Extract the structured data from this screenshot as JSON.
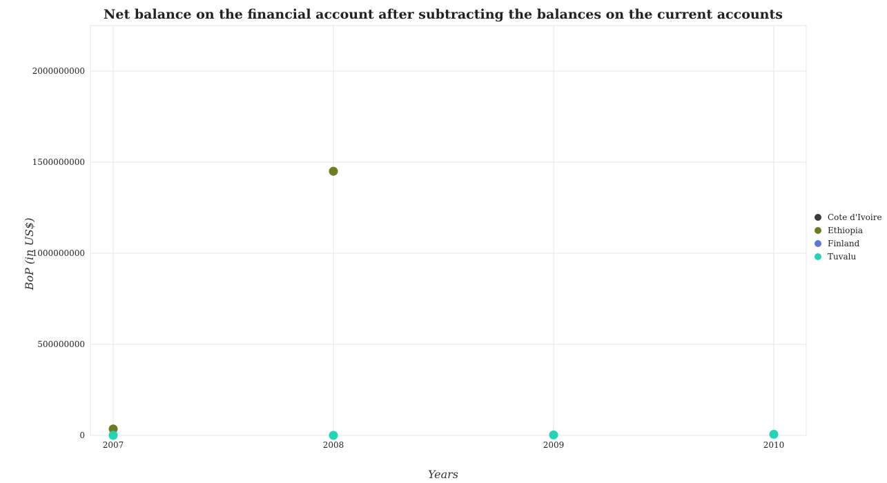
{
  "chart_data": {
    "type": "scatter",
    "title": "Net balance on the financial account after subtracting the balances on the current accounts",
    "xlabel": "Years",
    "ylabel": "BoP (in US$)",
    "categories": [
      "2007",
      "2008",
      "2009",
      "2010"
    ],
    "y_ticks": [
      0,
      500000000,
      1000000000,
      1500000000,
      2000000000
    ],
    "y_tick_labels": [
      "0",
      "500000000",
      "1000000000",
      "1500000000",
      "2000000000"
    ],
    "ylim": [
      0,
      2250000000
    ],
    "grid": true,
    "legend_position": "right",
    "series": [
      {
        "name": "Cote d'Ivoire",
        "color": "#3a3a3a",
        "values": [
          null,
          null,
          null,
          null
        ]
      },
      {
        "name": "Ethiopia",
        "color": "#6b7d1f",
        "values": [
          35000000,
          1450000000,
          null,
          null
        ]
      },
      {
        "name": "Finland",
        "color": "#5a78d6",
        "values": [
          null,
          null,
          null,
          null
        ]
      },
      {
        "name": "Tuvalu",
        "color": "#22d6b5",
        "values": [
          500000,
          200000,
          2500000,
          6000000
        ]
      }
    ]
  }
}
